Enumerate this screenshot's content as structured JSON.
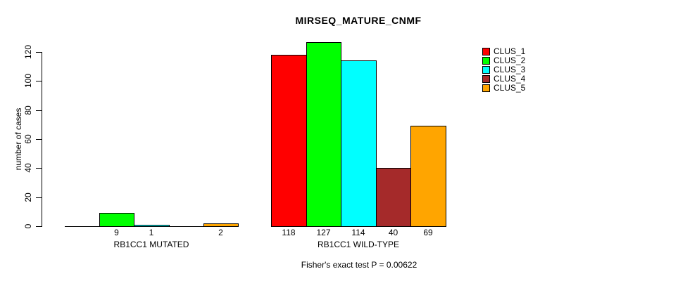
{
  "chart_data": {
    "type": "bar",
    "title": "MIRSEQ_MATURE_CNMF",
    "ylabel": "number of cases",
    "ylim": [
      0,
      120
    ],
    "yticks": [
      0,
      20,
      40,
      60,
      80,
      100,
      120
    ],
    "clusters": [
      "CLUS_1",
      "CLUS_2",
      "CLUS_3",
      "CLUS_4",
      "CLUS_5"
    ],
    "colors": [
      "#ff0000",
      "#00ff00",
      "#00ffff",
      "#a52a2a",
      "#ffa500"
    ],
    "groups": [
      {
        "label": "RB1CC1 MUTATED",
        "values": [
          0,
          9,
          1,
          0,
          2
        ]
      },
      {
        "label": "RB1CC1 WILD-TYPE",
        "values": [
          118,
          127,
          114,
          40,
          69
        ]
      }
    ],
    "legend": {
      "position": "top-right",
      "entries": [
        "CLUS_1",
        "CLUS_2",
        "CLUS_3",
        "CLUS_4",
        "CLUS_5"
      ]
    },
    "annotation": "Fisher's exact test P = 0.00622",
    "show_zero_value_labels": false,
    "grid": false,
    "background": "#ffffff",
    "text_color": "#000000"
  }
}
